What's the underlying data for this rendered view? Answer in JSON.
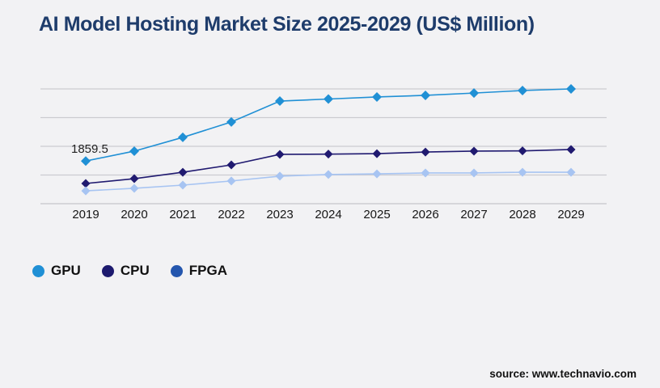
{
  "title": "AI Model Hosting Market Size 2025-2029 (US$ Million)",
  "source": "source: www.technavio.com",
  "colors": {
    "background": "#f2f2f4",
    "title": "#1e3c6b",
    "grid": "#cbcbd0",
    "axis": "#c6c6cb",
    "axis_label": "#161616",
    "annotation": "#222222"
  },
  "chart_data": {
    "type": "line",
    "title": "AI Model Hosting Market Size 2025-2029 (US$ Million)",
    "x": [
      2019,
      2020,
      2021,
      2022,
      2023,
      2024,
      2025,
      2026,
      2027,
      2028,
      2029
    ],
    "series": [
      {
        "name": "GPU",
        "color": "#2090d5",
        "legend_color": "#2090d5",
        "marker": "diamond",
        "values": [
          1859.5,
          2290,
          2890,
          3560,
          4470,
          4560,
          4650,
          4720,
          4820,
          4930,
          5000
        ]
      },
      {
        "name": "CPU",
        "color": "#201a70",
        "legend_color": "#1d1a6e",
        "marker": "diamond",
        "values": [
          880,
          1090,
          1370,
          1690,
          2150,
          2160,
          2180,
          2250,
          2290,
          2300,
          2360
        ]
      },
      {
        "name": "FPGA",
        "color": "#a7c4f2",
        "legend_color": "#2456ae",
        "marker": "diamond",
        "values": [
          560,
          670,
          810,
          990,
          1200,
          1270,
          1300,
          1340,
          1340,
          1370,
          1370
        ]
      }
    ],
    "annotation": {
      "text": "1859.5",
      "series": "GPU",
      "x": 2019
    },
    "value_precision_note": "values estimated from pixels except labeled 1859.5",
    "ylim": [
      0,
      5400
    ],
    "grid_values": [
      1250,
      2500,
      3750,
      5000
    ],
    "grid": true,
    "xlabel": "",
    "ylabel": "",
    "legend_position": "bottom-left"
  }
}
